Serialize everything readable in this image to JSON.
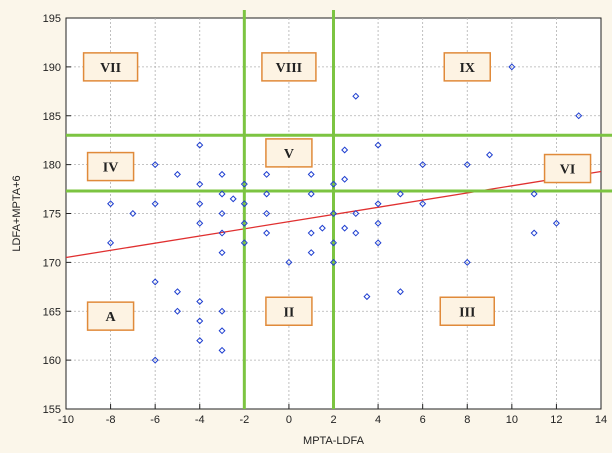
{
  "chart_data": {
    "type": "scatter",
    "title": "",
    "xlabel": "MPTA-LDFA",
    "ylabel": "LDFA+MPTA+6",
    "xlim": [
      -10,
      14
    ],
    "ylim": [
      155,
      195
    ],
    "xticks": [
      -10,
      -8,
      -6,
      -4,
      -2,
      0,
      2,
      4,
      6,
      8,
      10,
      12,
      14
    ],
    "yticks": [
      155,
      160,
      165,
      170,
      175,
      180,
      185,
      190,
      195
    ],
    "grid": "dashed",
    "points": [
      {
        "x": -8,
        "y": 176
      },
      {
        "x": -8,
        "y": 172
      },
      {
        "x": -7,
        "y": 175
      },
      {
        "x": -6,
        "y": 180
      },
      {
        "x": -6,
        "y": 176
      },
      {
        "x": -6,
        "y": 168
      },
      {
        "x": -6,
        "y": 160
      },
      {
        "x": -5,
        "y": 179
      },
      {
        "x": -5,
        "y": 167
      },
      {
        "x": -5,
        "y": 165
      },
      {
        "x": -4,
        "y": 182
      },
      {
        "x": -4,
        "y": 178
      },
      {
        "x": -4,
        "y": 176
      },
      {
        "x": -4,
        "y": 174
      },
      {
        "x": -4,
        "y": 166
      },
      {
        "x": -4,
        "y": 164
      },
      {
        "x": -4,
        "y": 162
      },
      {
        "x": -3,
        "y": 179
      },
      {
        "x": -3,
        "y": 177
      },
      {
        "x": -3,
        "y": 175
      },
      {
        "x": -3,
        "y": 173
      },
      {
        "x": -3,
        "y": 171
      },
      {
        "x": -3,
        "y": 165
      },
      {
        "x": -3,
        "y": 163
      },
      {
        "x": -3,
        "y": 161
      },
      {
        "x": -2.5,
        "y": 176.5
      },
      {
        "x": -2,
        "y": 178
      },
      {
        "x": -2,
        "y": 176
      },
      {
        "x": -2,
        "y": 174
      },
      {
        "x": -2,
        "y": 172
      },
      {
        "x": -1,
        "y": 179
      },
      {
        "x": -1,
        "y": 177
      },
      {
        "x": -1,
        "y": 175
      },
      {
        "x": -1,
        "y": 173
      },
      {
        "x": 0,
        "y": 170
      },
      {
        "x": 1,
        "y": 179
      },
      {
        "x": 1,
        "y": 177
      },
      {
        "x": 1,
        "y": 173
      },
      {
        "x": 1,
        "y": 171
      },
      {
        "x": 1.5,
        "y": 173.5
      },
      {
        "x": 2,
        "y": 178
      },
      {
        "x": 2,
        "y": 175
      },
      {
        "x": 2,
        "y": 172
      },
      {
        "x": 2,
        "y": 170
      },
      {
        "x": 2.5,
        "y": 181.5
      },
      {
        "x": 2.5,
        "y": 178.5
      },
      {
        "x": 2.5,
        "y": 173.5
      },
      {
        "x": 3,
        "y": 187
      },
      {
        "x": 3,
        "y": 175
      },
      {
        "x": 3,
        "y": 173
      },
      {
        "x": 3.5,
        "y": 166.5
      },
      {
        "x": 4,
        "y": 182
      },
      {
        "x": 4,
        "y": 176
      },
      {
        "x": 4,
        "y": 174
      },
      {
        "x": 4,
        "y": 172
      },
      {
        "x": 5,
        "y": 177
      },
      {
        "x": 5,
        "y": 167
      },
      {
        "x": 6,
        "y": 180
      },
      {
        "x": 6,
        "y": 176
      },
      {
        "x": 8,
        "y": 180
      },
      {
        "x": 8,
        "y": 170
      },
      {
        "x": 9,
        "y": 181
      },
      {
        "x": 10,
        "y": 190
      },
      {
        "x": 11,
        "y": 177
      },
      {
        "x": 11,
        "y": 173
      },
      {
        "x": 12,
        "y": 174
      },
      {
        "x": 13,
        "y": 185
      }
    ],
    "regression_line": {
      "x": [
        -10,
        14
      ],
      "y": [
        170.5,
        179.3
      ],
      "color": "#e03030"
    },
    "reference_lines": {
      "vertical": [
        -2,
        2
      ],
      "horizontal": [
        177.3,
        183
      ],
      "color": "#7cc441"
    },
    "regions": [
      {
        "label": "VII",
        "x": -8,
        "y": 190
      },
      {
        "label": "VIII",
        "x": 0,
        "y": 190
      },
      {
        "label": "IX",
        "x": 8,
        "y": 190
      },
      {
        "label": "V",
        "x": 0,
        "y": 181.2
      },
      {
        "label": "IV",
        "x": -8,
        "y": 179.8
      },
      {
        "label": "VI",
        "x": 12.5,
        "y": 179.6
      },
      {
        "label": "A",
        "x": -8,
        "y": 164.5
      },
      {
        "label": "II",
        "x": 0,
        "y": 165
      },
      {
        "label": "III",
        "x": 8,
        "y": 165
      }
    ],
    "colors": {
      "points": "#1f3fd0",
      "region_box_border": "#e08a3a",
      "background": "#fbf6ea"
    }
  }
}
